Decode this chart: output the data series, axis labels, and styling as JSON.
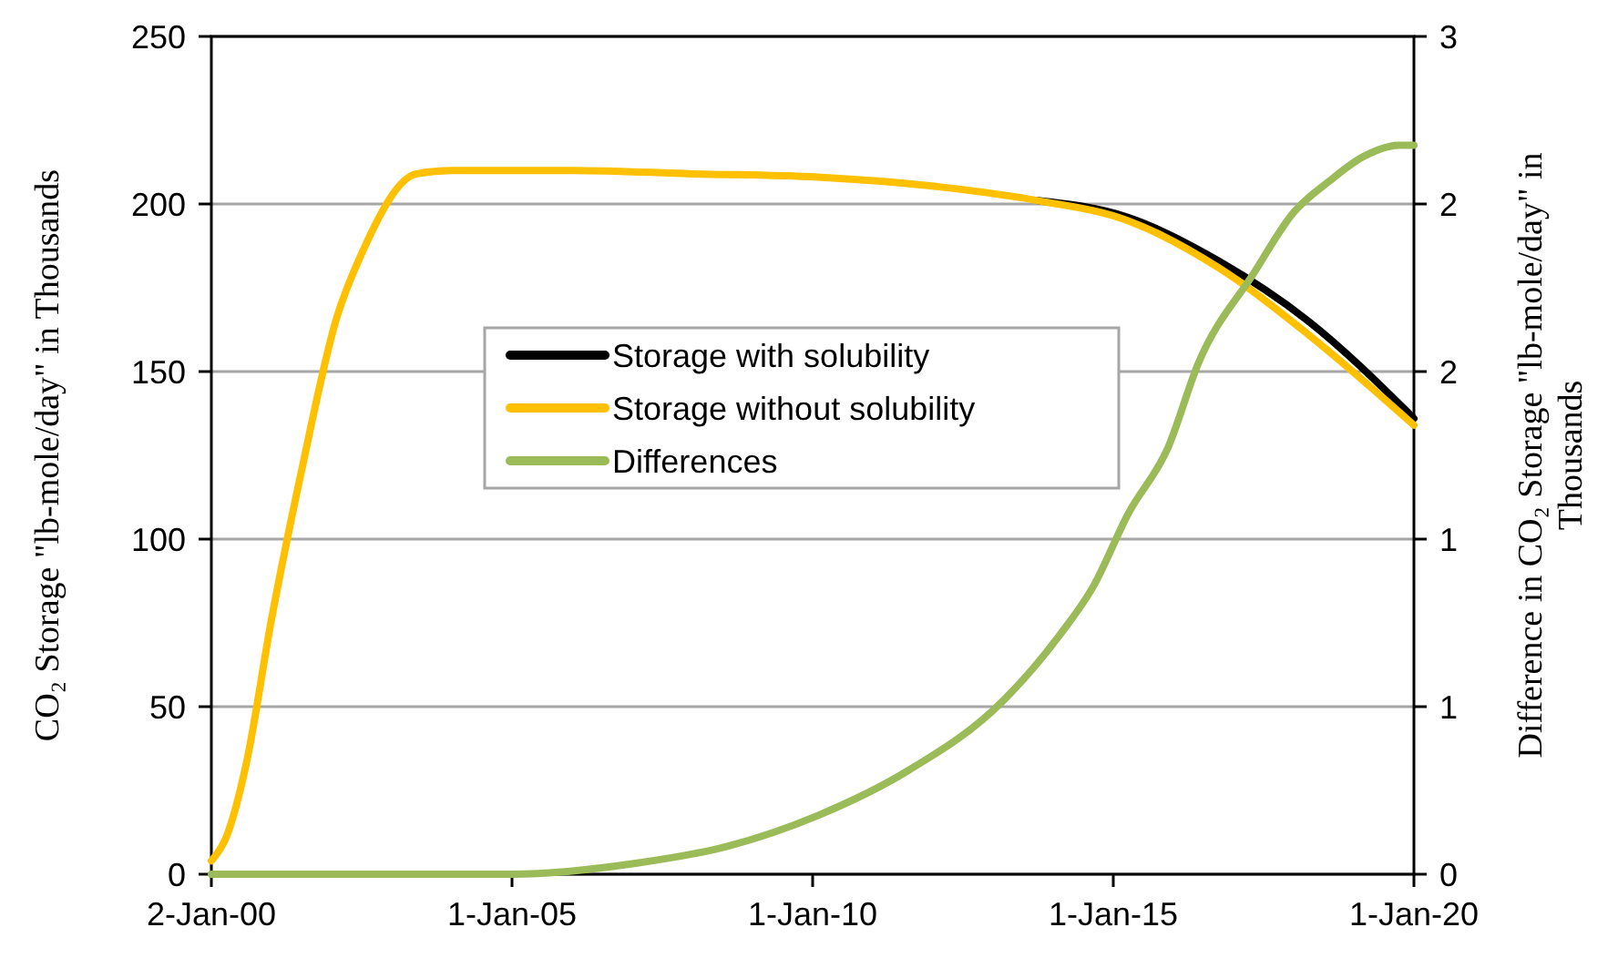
{
  "chart_data": {
    "type": "line",
    "ylabel": "CO₂ Storage \"lb-mole/day\" in Thousands",
    "y2label": "Difference in CO₂ Storage \"lb-mole/day\" in Thousands",
    "xlim": [
      "2000-01-02",
      "2020-01-01"
    ],
    "xticks": [
      {
        "value": "2000-01-02",
        "label": "2-Jan-00"
      },
      {
        "value": "2005-01-01",
        "label": "1-Jan-05"
      },
      {
        "value": "2010-01-01",
        "label": "1-Jan-10"
      },
      {
        "value": "2015-01-01",
        "label": "1-Jan-15"
      },
      {
        "value": "2020-01-01",
        "label": "1-Jan-20"
      }
    ],
    "ylim": [
      0,
      250
    ],
    "yticks": [
      0,
      50,
      100,
      150,
      200,
      250
    ],
    "y2lim": [
      0,
      3
    ],
    "y2ticks": [
      0,
      {
        "value": 0.6,
        "label": "1"
      },
      {
        "value": 1.2,
        "label": "1"
      },
      {
        "value": 1.8,
        "label": "2"
      },
      {
        "value": 2.4,
        "label": "2"
      },
      3
    ],
    "grid": "y",
    "legend": "center",
    "line_style": "solid",
    "marker": "none",
    "x": [
      "2000-01-02",
      "2000-04",
      "2000-08",
      "2001-01",
      "2001-07",
      "2002-02",
      "2002-07",
      "2003-06",
      "2004-01",
      "2006-01",
      "2008-01",
      "2010-02",
      "2012-03",
      "2013-10",
      "2015-04",
      "2016-10",
      "2018-04",
      "2020-01-01"
    ],
    "series": [
      {
        "name": "Storage with solubility",
        "color": "#000000",
        "values": [
          null,
          null,
          null,
          null,
          null,
          null,
          null,
          null,
          null,
          null,
          null,
          null,
          null,
          201,
          196,
          183,
          165,
          136
        ]
      },
      {
        "name": "Storage without solubility",
        "color": "#ffc000",
        "values": [
          4,
          11,
          33,
          76,
          120,
          166,
          185,
          209,
          210,
          210,
          209,
          208,
          205,
          201,
          195,
          181,
          161,
          134
        ]
      },
      {
        "name": "Differences",
        "color": "#9bbb59",
        "axis": "y2",
        "x": [
          "2000-01-02",
          "2002-01",
          "2004-01",
          "2005-01",
          "2007-02",
          "2008-08",
          "2010-02",
          "2011-08",
          "2013-03",
          "2014-02",
          "2014-09",
          "2015-04",
          "2015-12",
          "2016-06",
          "2017-05",
          "2018-01",
          "2018-08",
          "2019-03",
          "2019-10",
          "2020-01-01"
        ],
        "values": [
          0,
          0,
          0,
          0,
          0.04,
          0.1,
          0.21,
          0.37,
          0.62,
          0.85,
          1.03,
          1.29,
          1.53,
          1.83,
          2.15,
          2.37,
          2.48,
          2.57,
          2.61,
          2.61
        ]
      }
    ]
  }
}
